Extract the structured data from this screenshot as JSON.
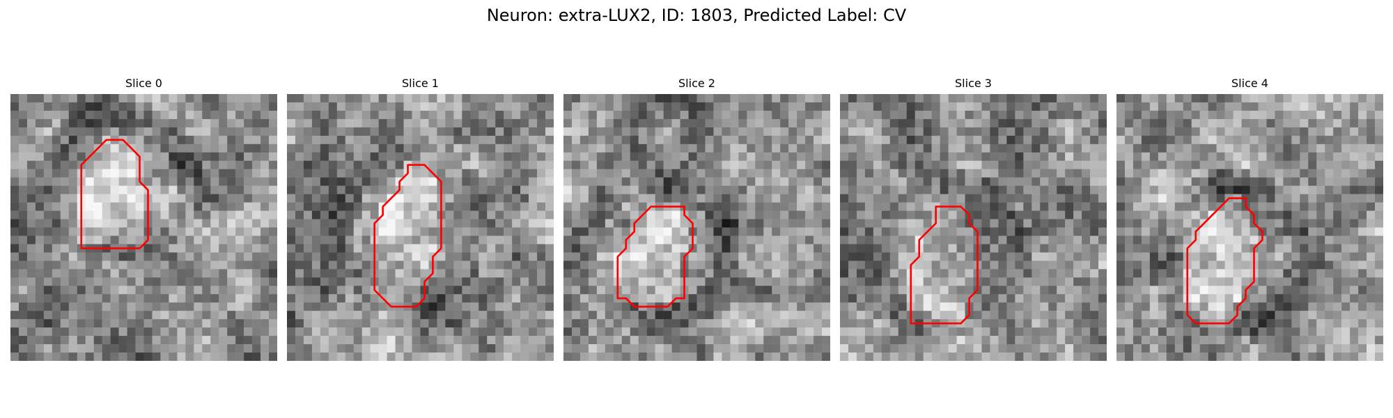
{
  "figure": {
    "title": "Neuron: extra-LUX2, ID: 1803, Predicted Label: CV"
  },
  "panels": [
    {
      "title": "Slice 0",
      "seed": 11,
      "outline": [
        [
          12.5,
          5.5
        ],
        [
          13.5,
          5.5
        ],
        [
          15.5,
          7.5
        ],
        [
          15.5,
          10.5
        ],
        [
          16.5,
          11.5
        ],
        [
          16.5,
          17.5
        ],
        [
          15.5,
          18.5
        ],
        [
          8.5,
          18.5
        ],
        [
          8.5,
          8.5
        ],
        [
          10.5,
          6.5
        ],
        [
          11.5,
          5.5
        ]
      ]
    },
    {
      "title": "Slice 1",
      "seed": 23,
      "outline": [
        [
          15.5,
          8.5
        ],
        [
          16.5,
          8.5
        ],
        [
          18.5,
          10.5
        ],
        [
          18.5,
          18.5
        ],
        [
          17.5,
          19.5
        ],
        [
          17.5,
          21.5
        ],
        [
          16.5,
          22.5
        ],
        [
          16.5,
          24.5
        ],
        [
          15.5,
          25.5
        ],
        [
          12.5,
          25.5
        ],
        [
          10.5,
          23.5
        ],
        [
          10.5,
          15.5
        ],
        [
          11.5,
          14.5
        ],
        [
          11.5,
          13.5
        ],
        [
          12.5,
          12.5
        ],
        [
          13.5,
          11.5
        ],
        [
          13.5,
          10.5
        ],
        [
          14.5,
          9.5
        ],
        [
          14.5,
          8.5
        ]
      ]
    },
    {
      "title": "Slice 2",
      "seed": 37,
      "outline": [
        [
          12.5,
          13.5
        ],
        [
          13.5,
          13.5
        ],
        [
          14.5,
          13.5
        ],
        [
          14.5,
          14.5
        ],
        [
          15.5,
          15.5
        ],
        [
          15.5,
          18.5
        ],
        [
          14.5,
          19.5
        ],
        [
          14.5,
          24.5
        ],
        [
          13.5,
          24.5
        ],
        [
          12.5,
          25.5
        ],
        [
          8.5,
          25.5
        ],
        [
          7.5,
          24.5
        ],
        [
          6.5,
          24.5
        ],
        [
          6.5,
          19.5
        ],
        [
          7.5,
          18.5
        ],
        [
          7.5,
          17.5
        ],
        [
          8.5,
          16.5
        ],
        [
          8.5,
          15.5
        ],
        [
          10.5,
          13.5
        ]
      ]
    },
    {
      "title": "Slice 3",
      "seed": 53,
      "outline": [
        [
          13.5,
          13.5
        ],
        [
          14.5,
          13.5
        ],
        [
          15.5,
          14.5
        ],
        [
          15.5,
          15.5
        ],
        [
          16.5,
          16.5
        ],
        [
          16.5,
          23.5
        ],
        [
          15.5,
          24.5
        ],
        [
          15.5,
          26.5
        ],
        [
          14.5,
          27.5
        ],
        [
          8.5,
          27.5
        ],
        [
          8.5,
          20.5
        ],
        [
          9.5,
          19.5
        ],
        [
          9.5,
          17.5
        ],
        [
          10.5,
          16.5
        ],
        [
          11.5,
          15.5
        ],
        [
          11.5,
          13.5
        ]
      ]
    },
    {
      "title": "Slice 4",
      "seed": 71,
      "outline": [
        [
          14.5,
          12.5
        ],
        [
          15.5,
          12.5
        ],
        [
          15.5,
          13.5
        ],
        [
          16.5,
          14.5
        ],
        [
          16.5,
          15.5
        ],
        [
          17.5,
          16.5
        ],
        [
          17.5,
          17.5
        ],
        [
          16.5,
          18.5
        ],
        [
          16.5,
          22.5
        ],
        [
          15.5,
          23.5
        ],
        [
          15.5,
          24.5
        ],
        [
          14.5,
          25.5
        ],
        [
          14.5,
          26.5
        ],
        [
          13.5,
          27.5
        ],
        [
          9.5,
          27.5
        ],
        [
          8.5,
          26.5
        ],
        [
          8.5,
          18.5
        ],
        [
          9.5,
          17.5
        ],
        [
          9.5,
          16.5
        ],
        [
          10.5,
          15.5
        ],
        [
          12.5,
          13.5
        ],
        [
          13.5,
          12.5
        ]
      ]
    }
  ],
  "colors": {
    "outline": "#ff0000"
  }
}
